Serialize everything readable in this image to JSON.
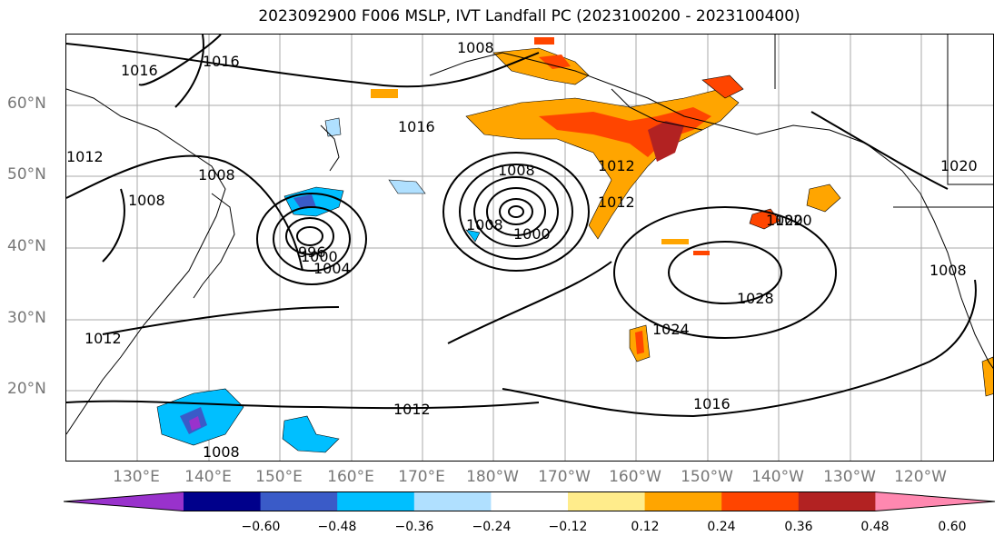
{
  "title": "2023092900 F006 MSLP, IVT Landfall PC (2023100200 - 2023100400)",
  "lat_labels": [
    "60°N",
    "50°N",
    "40°N",
    "30°N",
    "20°N"
  ],
  "lon_labels": [
    "130°E",
    "140°E",
    "150°E",
    "160°E",
    "170°E",
    "180°W",
    "170°W",
    "160°W",
    "150°W",
    "140°W",
    "130°W",
    "120°W"
  ],
  "contour_labels": [
    "1008",
    "1016",
    "1020",
    "1016",
    "1012",
    "1008",
    "1008",
    "1016",
    "1008",
    "996",
    "1000",
    "1004",
    "1012",
    "1008",
    "1012",
    "1012",
    "1020",
    "1008",
    "1000",
    "1020",
    "1028",
    "1024",
    "1016",
    "1012",
    "1008"
  ],
  "colorbar": {
    "ticks": [
      "−0.60",
      "−0.48",
      "−0.36",
      "−0.24",
      "−0.12",
      "0.12",
      "0.24",
      "0.36",
      "0.48",
      "0.60"
    ],
    "colors": [
      "#9932cc",
      "#00008b",
      "#3a5bc8",
      "#00bfff",
      "#b0e0ff",
      "#ffffff",
      "#ffec8b",
      "#ffa500",
      "#ff4500",
      "#b22222",
      "#ff88b0"
    ]
  }
}
